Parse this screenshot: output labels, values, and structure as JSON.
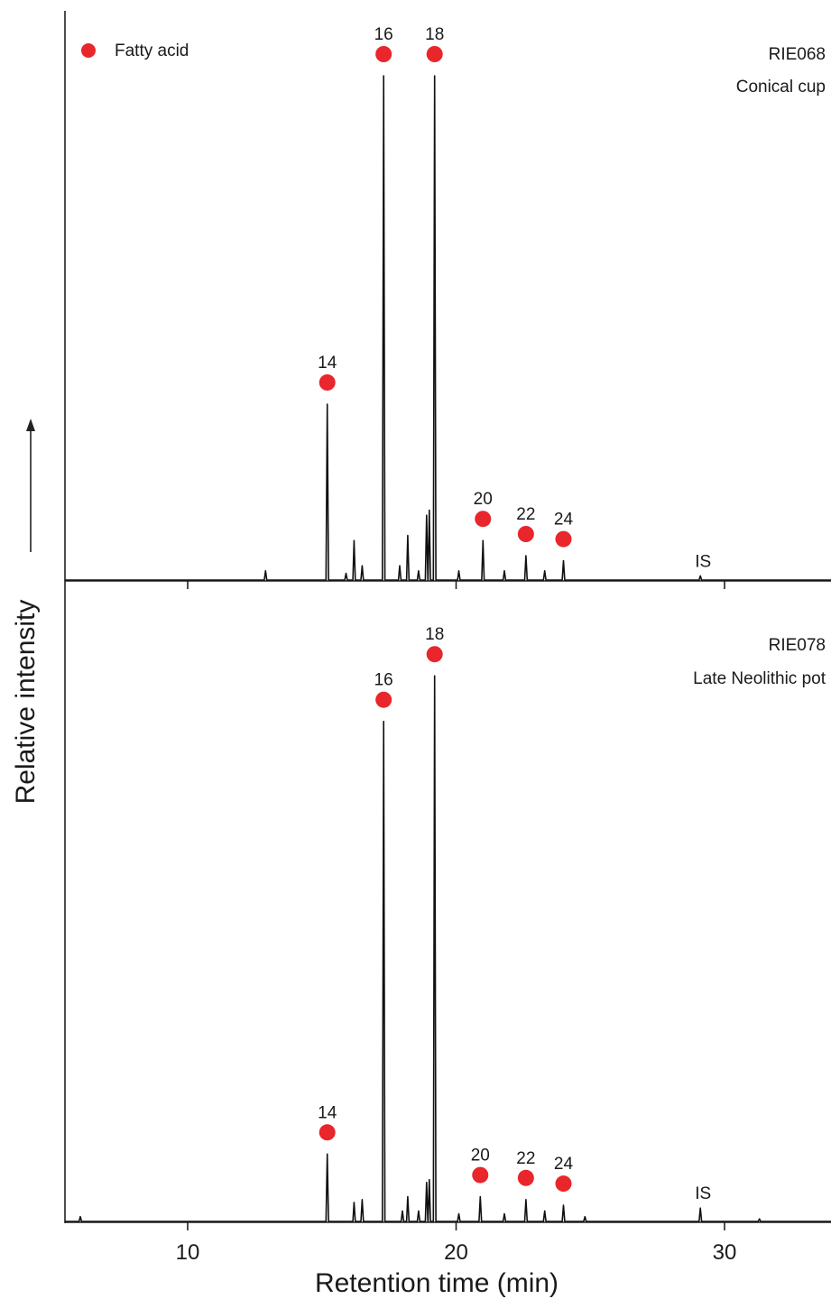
{
  "chart_data": {
    "type": "line",
    "xlabel": "Retention time (min)",
    "ylabel": "Relative intensity",
    "xlim": [
      5.5,
      34
    ],
    "x_ticks": [
      10,
      20,
      30
    ],
    "legend": {
      "label": "Fatty acid",
      "marker_color": "#e8262b",
      "placement": "top-left"
    },
    "panels": [
      {
        "sample_id": "RIE068",
        "sample_desc": "Conical cup",
        "ylim": [
          0,
          100
        ],
        "peaks": [
          {
            "x": 12.9,
            "y": 2
          },
          {
            "x": 15.2,
            "y": 35,
            "label": "14",
            "fatty_acid": true
          },
          {
            "x": 15.9,
            "y": 1.5
          },
          {
            "x": 16.2,
            "y": 8
          },
          {
            "x": 16.5,
            "y": 3
          },
          {
            "x": 17.3,
            "y": 100,
            "label": "16",
            "fatty_acid": true
          },
          {
            "x": 17.9,
            "y": 3
          },
          {
            "x": 18.2,
            "y": 9
          },
          {
            "x": 18.6,
            "y": 2
          },
          {
            "x": 18.9,
            "y": 13
          },
          {
            "x": 19.0,
            "y": 14
          },
          {
            "x": 19.2,
            "y": 100,
            "label": "18",
            "fatty_acid": true
          },
          {
            "x": 20.1,
            "y": 2
          },
          {
            "x": 21.0,
            "y": 8,
            "label": "20",
            "fatty_acid": true
          },
          {
            "x": 21.8,
            "y": 2
          },
          {
            "x": 22.6,
            "y": 5,
            "label": "22",
            "fatty_acid": true
          },
          {
            "x": 23.3,
            "y": 2
          },
          {
            "x": 24.0,
            "y": 4,
            "label": "24",
            "fatty_acid": true
          },
          {
            "x": 29.1,
            "y": 1,
            "label": "IS"
          }
        ]
      },
      {
        "sample_id": "RIE078",
        "sample_desc": "Late Neolithic pot",
        "ylim": [
          0,
          100
        ],
        "peaks": [
          {
            "x": 6.0,
            "y": 1
          },
          {
            "x": 15.2,
            "y": 12,
            "label": "14",
            "fatty_acid": true
          },
          {
            "x": 16.2,
            "y": 3.5
          },
          {
            "x": 16.5,
            "y": 4
          },
          {
            "x": 17.3,
            "y": 88,
            "label": "16",
            "fatty_acid": true
          },
          {
            "x": 18.0,
            "y": 2
          },
          {
            "x": 18.2,
            "y": 4.5
          },
          {
            "x": 18.6,
            "y": 2
          },
          {
            "x": 18.9,
            "y": 7
          },
          {
            "x": 19.0,
            "y": 7.5
          },
          {
            "x": 19.2,
            "y": 96,
            "label": "18",
            "fatty_acid": true
          },
          {
            "x": 20.1,
            "y": 1.5
          },
          {
            "x": 20.9,
            "y": 4.5,
            "label": "20",
            "fatty_acid": true
          },
          {
            "x": 21.8,
            "y": 1.5
          },
          {
            "x": 22.6,
            "y": 4,
            "label": "22",
            "fatty_acid": true
          },
          {
            "x": 23.3,
            "y": 2
          },
          {
            "x": 24.0,
            "y": 3,
            "label": "24",
            "fatty_acid": true
          },
          {
            "x": 24.8,
            "y": 1
          },
          {
            "x": 29.1,
            "y": 2.5,
            "label": "IS"
          },
          {
            "x": 31.3,
            "y": 0.6
          }
        ]
      }
    ]
  }
}
